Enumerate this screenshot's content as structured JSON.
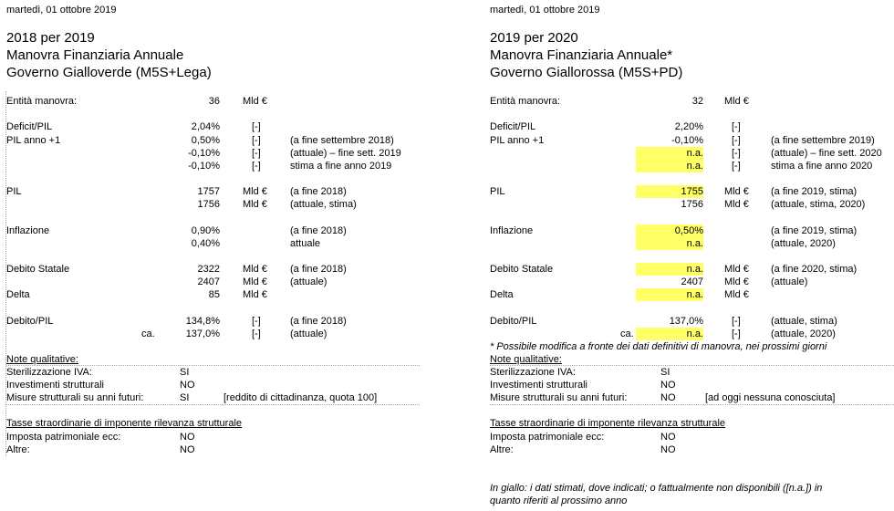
{
  "left": {
    "date": "martedì, 01 ottobre 2019",
    "title_lines": [
      "2018 per 2019",
      "Manovra Finanziaria Annuale",
      "Governo Gialloverde (M5S+Lega)"
    ],
    "rows": [
      {
        "label": "Entità manovra:",
        "value": "36",
        "unit": "Mld €",
        "note": "",
        "hl": false
      },
      {
        "label": "Deficit/PIL",
        "value": "2,04%",
        "unit": "[-]",
        "note": "",
        "hl": false
      },
      {
        "label": "PIL anno +1",
        "value": "0,50%",
        "unit": "[-]",
        "note": "(a fine settembre 2018)",
        "hl": false
      },
      {
        "label": "",
        "value": "-0,10%",
        "unit": "[-]",
        "note": "(attuale) – fine sett. 2019",
        "hl": false
      },
      {
        "label": "",
        "value": "-0,10%",
        "unit": "[-]",
        "note": "stima a fine anno 2019",
        "hl": false
      },
      {
        "label": "PIL",
        "value": "1757",
        "unit": "Mld €",
        "note": "(a fine 2018)",
        "hl": false
      },
      {
        "label": "",
        "value": "1756",
        "unit": "Mld €",
        "note": "(attuale, stima)",
        "hl": false
      },
      {
        "label": "Inflazione",
        "value": "0,90%",
        "unit": "",
        "note": "(a fine 2018)",
        "hl": false
      },
      {
        "label": "",
        "value": "0,40%",
        "unit": "",
        "note": "attuale",
        "hl": false
      },
      {
        "label": "Debito Statale",
        "value": "2322",
        "unit": "Mld €",
        "note": "(a fine 2018)",
        "hl": false
      },
      {
        "label": "",
        "value": "2407",
        "unit": "Mld €",
        "note": "(attuale)",
        "hl": false
      },
      {
        "label": "Delta",
        "value": "85",
        "unit": "Mld €",
        "note": "",
        "hl": false
      },
      {
        "label": "Debito/PIL",
        "value": "134,8%",
        "unit": "[-]",
        "note": "(a fine 2018)",
        "hl": false
      },
      {
        "label": "",
        "prefix": "ca.",
        "value": "137,0%",
        "unit": "[-]",
        "note": "(attuale)",
        "hl": false
      }
    ],
    "footnote": "",
    "qual_heading": "Note qualitative:",
    "qual_items": [
      {
        "label": "Sterilizzazione IVA:",
        "value": "SI",
        "note": ""
      },
      {
        "label": "Investimenti strutturali",
        "value": "NO",
        "note": ""
      },
      {
        "label": "Misure strutturali su anni futuri:",
        "value": "SI",
        "note": "[reddito di cittadinanza, quota 100]"
      }
    ],
    "tax_heading": "Tasse straordinarie di imponente rilevanza strutturale",
    "tax_items": [
      {
        "label": "Imposta patrimoniale ecc:",
        "value": "NO"
      },
      {
        "label": "Altre:",
        "value": "NO"
      }
    ],
    "legend": ""
  },
  "right": {
    "date": "martedì, 01 ottobre 2019",
    "title_lines": [
      "2019 per 2020",
      "Manovra Finanziaria Annuale*",
      "Governo Giallorossa (M5S+PD)"
    ],
    "rows": [
      {
        "label": "Entità manovra:",
        "value": "32",
        "unit": "Mld €",
        "note": "",
        "hl": false
      },
      {
        "label": "Deficit/PIL",
        "value": "2,20%",
        "unit": "[-]",
        "note": "",
        "hl": false
      },
      {
        "label": "PIL anno +1",
        "value": "-0,10%",
        "unit": "[-]",
        "note": "(a fine settembre 2019)",
        "hl": false
      },
      {
        "label": "",
        "value": "n.a.",
        "unit": "[-]",
        "note": "(attuale) – fine sett. 2020",
        "hl": true
      },
      {
        "label": "",
        "value": "n.a.",
        "unit": "[-]",
        "note": "stima a fine anno 2020",
        "hl": true
      },
      {
        "label": "PIL",
        "value": "1755",
        "unit": "Mld €",
        "note": "(a fine 2019, stima)",
        "hl": true
      },
      {
        "label": "",
        "value": "1756",
        "unit": "Mld €",
        "note": "(attuale, stima, 2020)",
        "hl": false
      },
      {
        "label": "Inflazione",
        "value": "0,50%",
        "unit": "",
        "note": "(a fine 2019, stima)",
        "hl": true
      },
      {
        "label": "",
        "value": "n.a.",
        "unit": "",
        "note": "(attuale, 2020)",
        "hl": true
      },
      {
        "label": "Debito Statale",
        "value": "n.a.",
        "unit": "Mld €",
        "note": "(a fine 2020, stima)",
        "hl": true
      },
      {
        "label": "",
        "value": "2407",
        "unit": "Mld €",
        "note": "(attuale)",
        "hl": false
      },
      {
        "label": "Delta",
        "value": "n.a.",
        "unit": "Mld €",
        "note": "",
        "hl": true
      },
      {
        "label": "Debito/PIL",
        "value": "137,0%",
        "unit": "[-]",
        "note": "(attuale, stima)",
        "hl": false
      },
      {
        "label": "",
        "prefix": "ca.",
        "value": "n.a.",
        "unit": "[-]",
        "note": "(attuale, 2020)",
        "hl": true
      }
    ],
    "footnote": "* Possibile modifica a fronte dei dati definitivi di manovra, nei prossimi giorni",
    "qual_heading": "Note qualitative:",
    "qual_items": [
      {
        "label": "Sterilizzazione IVA:",
        "value": "SI",
        "note": ""
      },
      {
        "label": "Investimenti strutturali",
        "value": "NO",
        "note": ""
      },
      {
        "label": "Misure strutturali su anni futuri:",
        "value": "NO",
        "note": "[ad oggi nessuna conosciuta]"
      }
    ],
    "tax_heading": "Tasse straordinarie di imponente rilevanza strutturale",
    "tax_items": [
      {
        "label": "Imposta patrimoniale ecc:",
        "value": "NO"
      },
      {
        "label": "Altre:",
        "value": "NO"
      }
    ],
    "legend": "In giallo: i dati stimati, dove indicati; o fattualmente non disponibili ([n.a.]) in quanto riferiti al prossimo anno",
    "highlight_color": "#ffff66"
  }
}
